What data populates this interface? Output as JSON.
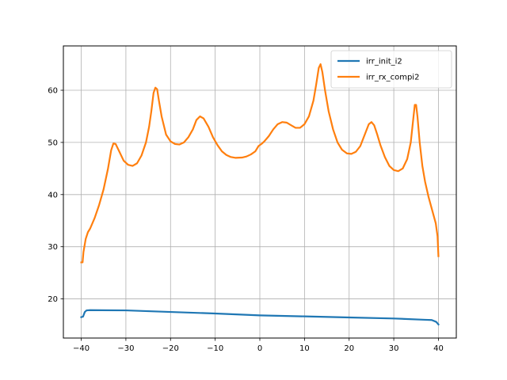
{
  "chart_data": {
    "type": "line",
    "title": "",
    "xlabel": "",
    "ylabel": "",
    "xlim": [
      -44,
      44
    ],
    "ylim": [
      12.5,
      68.5
    ],
    "xticks": [
      -40,
      -30,
      -20,
      -10,
      0,
      10,
      20,
      30,
      40
    ],
    "xtick_labels": [
      "−40",
      "−30",
      "−20",
      "−10",
      "0",
      "10",
      "20",
      "30",
      "40"
    ],
    "yticks": [
      20,
      30,
      40,
      50,
      60
    ],
    "ytick_labels": [
      "20",
      "30",
      "40",
      "50",
      "60"
    ],
    "grid": true,
    "legend_position": "top-right",
    "series": [
      {
        "name": "irr_init_i2",
        "color": "#1f77b4",
        "points": [
          [
            -40,
            16.5
          ],
          [
            -39.6,
            16.6
          ],
          [
            -39.2,
            17.5
          ],
          [
            -38.8,
            17.8
          ],
          [
            -38,
            17.85
          ],
          [
            -30,
            17.8
          ],
          [
            -20,
            17.5
          ],
          [
            -10,
            17.2
          ],
          [
            0,
            16.85
          ],
          [
            10,
            16.65
          ],
          [
            20,
            16.45
          ],
          [
            30,
            16.25
          ],
          [
            37,
            16.0
          ],
          [
            38.5,
            15.95
          ],
          [
            39.5,
            15.6
          ],
          [
            40,
            15.1
          ]
        ]
      },
      {
        "name": "irr_rx_compi2",
        "color": "#ff7f0e",
        "points": [
          [
            -40,
            27
          ],
          [
            -39.7,
            27
          ],
          [
            -39.5,
            29
          ],
          [
            -39,
            31.5
          ],
          [
            -38.5,
            32.8
          ],
          [
            -38,
            33.5
          ],
          [
            -37,
            35.5
          ],
          [
            -36,
            38
          ],
          [
            -35,
            41
          ],
          [
            -34,
            45
          ],
          [
            -33.3,
            48.5
          ],
          [
            -32.8,
            49.8
          ],
          [
            -32.3,
            49.7
          ],
          [
            -31.5,
            48.3
          ],
          [
            -30.5,
            46.5
          ],
          [
            -29.5,
            45.7
          ],
          [
            -28.5,
            45.5
          ],
          [
            -27.5,
            46
          ],
          [
            -26.5,
            47.5
          ],
          [
            -25.5,
            50
          ],
          [
            -24.8,
            53
          ],
          [
            -24.3,
            56
          ],
          [
            -23.8,
            59.5
          ],
          [
            -23.4,
            60.5
          ],
          [
            -23,
            60.2
          ],
          [
            -22.6,
            58
          ],
          [
            -22,
            55
          ],
          [
            -21,
            51.5
          ],
          [
            -20,
            50.2
          ],
          [
            -19,
            49.7
          ],
          [
            -18,
            49.6
          ],
          [
            -17,
            50
          ],
          [
            -16,
            51
          ],
          [
            -15,
            52.5
          ],
          [
            -14.2,
            54.3
          ],
          [
            -13.4,
            55
          ],
          [
            -12.6,
            54.6
          ],
          [
            -11.5,
            53
          ],
          [
            -10.5,
            51
          ],
          [
            -9.5,
            49.5
          ],
          [
            -8.5,
            48.3
          ],
          [
            -7.5,
            47.6
          ],
          [
            -6.5,
            47.2
          ],
          [
            -5.5,
            47.05
          ],
          [
            -4,
            47.1
          ],
          [
            -3,
            47.3
          ],
          [
            -2,
            47.7
          ],
          [
            -1,
            48.3
          ],
          [
            -0.3,
            49.3
          ],
          [
            0.5,
            49.8
          ],
          [
            1,
            50.2
          ],
          [
            2,
            51.2
          ],
          [
            3,
            52.5
          ],
          [
            4,
            53.5
          ],
          [
            5,
            53.9
          ],
          [
            6,
            53.8
          ],
          [
            7,
            53.3
          ],
          [
            8,
            52.8
          ],
          [
            9,
            52.8
          ],
          [
            10,
            53.5
          ],
          [
            11,
            55
          ],
          [
            12,
            58
          ],
          [
            12.6,
            61
          ],
          [
            13.2,
            64.3
          ],
          [
            13.6,
            65
          ],
          [
            14,
            63.5
          ],
          [
            14.6,
            60
          ],
          [
            15.4,
            56
          ],
          [
            16.4,
            52.5
          ],
          [
            17.4,
            50
          ],
          [
            18.4,
            48.6
          ],
          [
            19.5,
            47.9
          ],
          [
            20.5,
            47.8
          ],
          [
            21.5,
            48.2
          ],
          [
            22.5,
            49.3
          ],
          [
            23.5,
            51.5
          ],
          [
            24.4,
            53.5
          ],
          [
            25,
            53.9
          ],
          [
            25.6,
            53.3
          ],
          [
            26.3,
            51.5
          ],
          [
            27,
            49.5
          ],
          [
            28,
            47.2
          ],
          [
            29,
            45.5
          ],
          [
            30,
            44.7
          ],
          [
            31,
            44.5
          ],
          [
            32,
            45
          ],
          [
            33,
            46.8
          ],
          [
            33.8,
            50
          ],
          [
            34.3,
            54
          ],
          [
            34.7,
            57.2
          ],
          [
            35,
            57.2
          ],
          [
            35.3,
            55
          ],
          [
            35.8,
            50
          ],
          [
            36.4,
            45.5
          ],
          [
            37,
            42.5
          ],
          [
            37.8,
            39.5
          ],
          [
            38.6,
            37
          ],
          [
            39.4,
            34.5
          ],
          [
            39.8,
            32
          ],
          [
            40,
            28.2
          ]
        ]
      }
    ]
  }
}
